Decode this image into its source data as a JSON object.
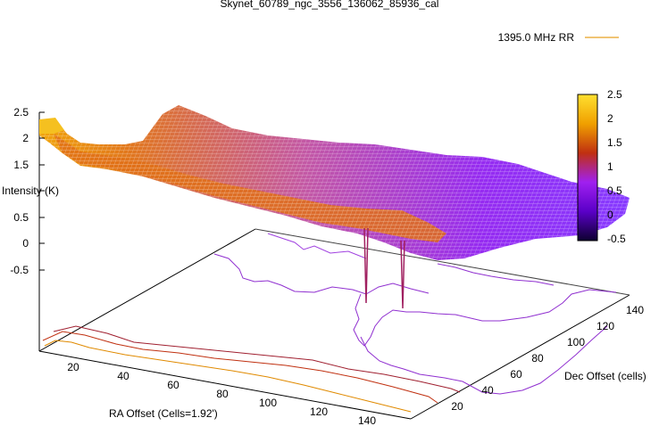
{
  "chart_data": {
    "type": "surface",
    "title": "Skynet_60789_ngc_3556_136062_85936_cal",
    "legend_entry": "1395.0 MHz RR",
    "xlabel": "RA Offset (Cells=1.92')",
    "ylabel": "Dec Offset (cells)",
    "zlabel": "Intensity (K)",
    "x_ticks": [
      "20",
      "40",
      "60",
      "80",
      "100",
      "120",
      "140"
    ],
    "y_ticks": [
      "20",
      "40",
      "60",
      "80",
      "100",
      "120",
      "140"
    ],
    "z_ticks": [
      "2.5",
      "2",
      "1.5",
      "1",
      "0.5",
      "0",
      "-0.5"
    ],
    "colorbar_ticks": [
      "2.5",
      "2",
      "1.5",
      "1",
      "0.5",
      "0",
      "-0.5"
    ],
    "zlim": [
      -0.5,
      2.5
    ],
    "colorbar_range": [
      -0.5,
      2.5
    ],
    "palette": [
      "#0d0030",
      "#5a00b4",
      "#a020f0",
      "#c03090",
      "#d06020",
      "#f0a000",
      "#ffe030"
    ],
    "legend_color": "#e8a020",
    "profile_along_ra": [
      {
        "ra": 5,
        "intensity": 2.3
      },
      {
        "ra": 15,
        "intensity": 1.6
      },
      {
        "ra": 30,
        "intensity": 1.5
      },
      {
        "ra": 50,
        "intensity": 1.2
      },
      {
        "ra": 70,
        "intensity": 1.0
      },
      {
        "ra": 90,
        "intensity": 0.8
      },
      {
        "ra": 110,
        "intensity": 0.7
      },
      {
        "ra": 130,
        "intensity": 0.5
      },
      {
        "ra": 150,
        "intensity": 0.3
      }
    ],
    "spike_min_intensity": -0.3
  }
}
